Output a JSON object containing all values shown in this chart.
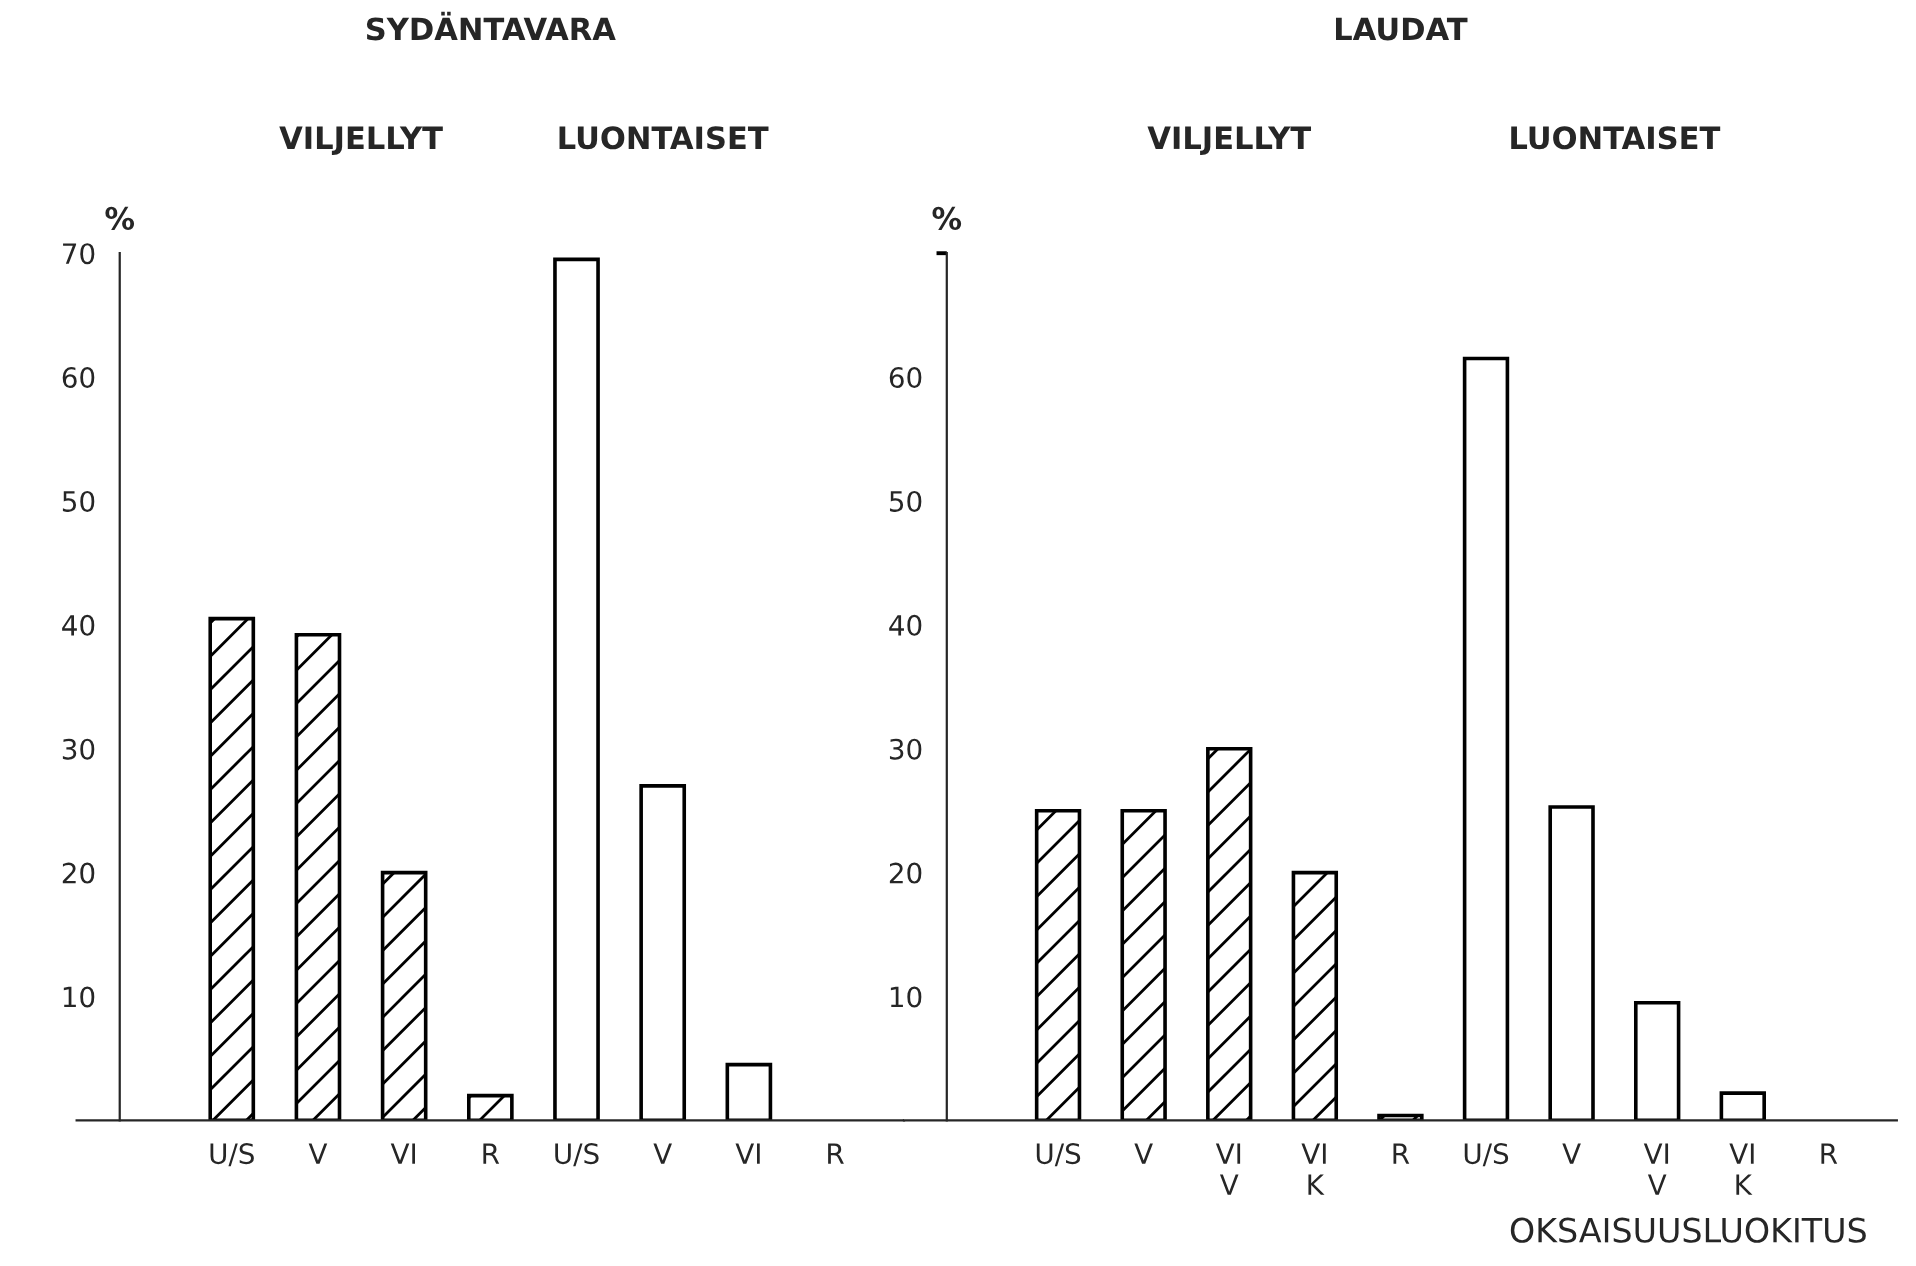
{
  "chart_data": [
    {
      "type": "bar",
      "title": "SYDÄNTAVARA",
      "ylabel": "%",
      "annotations": [
        "VILJELLYT",
        "LUONTAISET"
      ],
      "categories": [
        "U/S",
        "V",
        "VI",
        "R",
        "U/S",
        "V",
        "VI",
        "R"
      ],
      "series": [
        {
          "color": "#000000",
          "values": [
            40.5,
            39.2,
            20,
            2,
            null,
            null,
            null,
            null
          ]
        },
        {
          "color": "#ffffff",
          "values": [
            null,
            null,
            null,
            null,
            69.5,
            27,
            4.5,
            null
          ]
        }
      ],
      "ylim": [
        0,
        70
      ],
      "yticks": [
        10,
        20,
        30,
        40,
        50,
        60,
        70
      ],
      "grid": false,
      "legend": false
    },
    {
      "type": "bar",
      "title": "LAUDAT",
      "ylabel": "%",
      "xlabel": "OKSAISUUSLUOKITUS",
      "annotations": [
        "VILJELLYT",
        "LUONTAISET"
      ],
      "categories": [
        "U/S",
        "V",
        "VI\nV",
        "VI\nK",
        "R",
        "U/S",
        "V",
        "VI\nV",
        "VI\nK",
        "R"
      ],
      "series": [
        {
          "color": "#000000",
          "values": [
            25,
            25,
            30,
            20,
            0.4,
            null,
            null,
            null,
            null,
            null
          ]
        },
        {
          "color": "#ffffff",
          "values": [
            null,
            null,
            null,
            null,
            null,
            61.5,
            25.3,
            9.5,
            2.2,
            null
          ]
        }
      ],
      "ylim": [
        0,
        70
      ],
      "yticks": [
        10,
        20,
        30,
        40,
        50,
        60,
        {
          "value": 70,
          "label": null
        }
      ],
      "grid": false,
      "legend": false
    }
  ]
}
